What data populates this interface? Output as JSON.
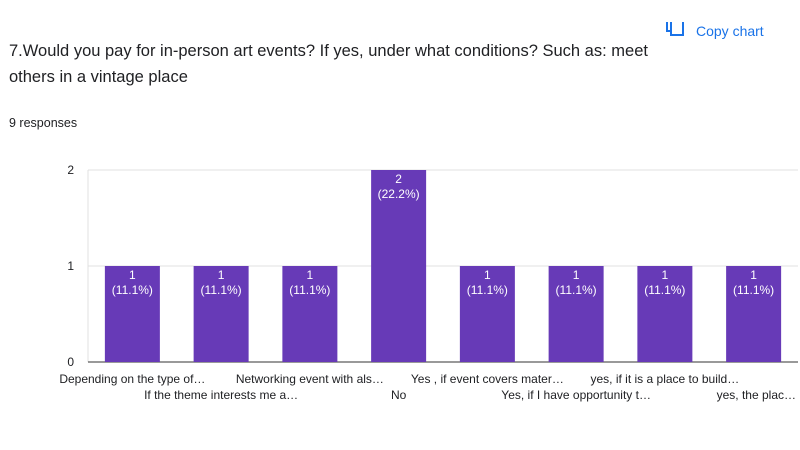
{
  "question": "7.Would you pay for in-person art events? If yes, under what conditions? Such as: meet others in a vintage place",
  "copy_chart_label": "Copy chart",
  "responses_label": "9 responses",
  "colors": {
    "bar": "#673ab7",
    "accent": "#1a73e8",
    "grid": "#e0e0e0",
    "axis": "#333333"
  },
  "chart_data": {
    "type": "bar",
    "categories": [
      "Depending on the type of…",
      "If the theme interests me a…",
      "Networking event with als…",
      "No",
      "Yes , if event covers mater…",
      "Yes, if I have opportunity t…",
      "yes, if it is a place to build…",
      "yes, the plac…"
    ],
    "values": [
      1,
      1,
      1,
      2,
      1,
      1,
      1,
      1
    ],
    "data_labels": [
      [
        "1",
        "(11.1%)"
      ],
      [
        "1",
        "(11.1%)"
      ],
      [
        "1",
        "(11.1%)"
      ],
      [
        "2",
        "(22.2%)"
      ],
      [
        "1",
        "(11.1%)"
      ],
      [
        "1",
        "(11.1%)"
      ],
      [
        "1",
        "(11.1%)"
      ],
      [
        "1",
        "(11.1%)"
      ]
    ],
    "yticks": [
      "0",
      "1",
      "2"
    ],
    "ylim": [
      0,
      2
    ],
    "grid": true
  }
}
